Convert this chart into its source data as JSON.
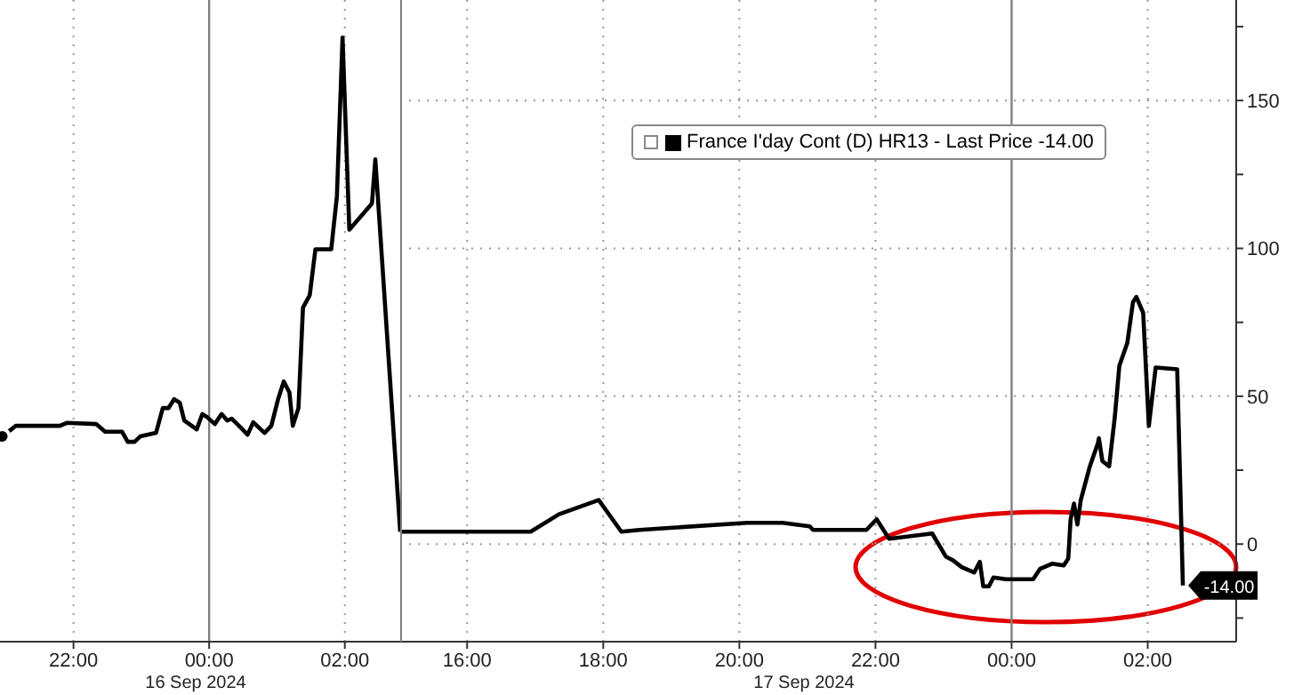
{
  "chart_data": [
    {
      "type": "line",
      "x": [
        "2024-09-15T20:57",
        "2024-09-15T21:09",
        "2024-09-15T21:48",
        "2024-09-15T21:54",
        "2024-09-15T22:20",
        "2024-09-15T22:28",
        "2024-09-15T22:43",
        "2024-09-15T22:48",
        "2024-09-15T22:54",
        "2024-09-15T22:59",
        "2024-09-15T23:13",
        "2024-09-15T23:19",
        "2024-09-15T23:24",
        "2024-09-15T23:29",
        "2024-09-15T23:34",
        "2024-09-15T23:38",
        "2024-09-15T23:49",
        "2024-09-15T23:54",
        "2024-09-15T23:58",
        "2024-09-16T00:05",
        "2024-09-16T00:11",
        "2024-09-16T00:16",
        "2024-09-16T00:20",
        "2024-09-16T00:28",
        "2024-09-16T00:34",
        "2024-09-16T00:39",
        "2024-09-16T00:49",
        "2024-09-16T00:55",
        "2024-09-16T01:01",
        "2024-09-16T01:06",
        "2024-09-16T01:11",
        "2024-09-16T01:14",
        "2024-09-16T01:19",
        "2024-09-16T01:23",
        "2024-09-16T01:29",
        "2024-09-16T01:34",
        "2024-09-16T01:48",
        "2024-09-16T01:53",
        "2024-09-16T01:58",
        "2024-09-16T02:04",
        "2024-09-16T02:24",
        "2024-09-16T02:27",
        "2024-09-16T02:49"
      ],
      "series": [
        {
          "color": "#000000",
          "values": [
            36.4,
            40,
            40,
            41,
            40.6,
            38,
            38,
            34.6,
            34.6,
            36.4,
            37.6,
            46,
            46,
            49,
            47.8,
            41.8,
            38.8,
            44,
            43,
            40.6,
            44,
            41.8,
            42.4,
            39.4,
            37,
            41.2,
            37.6,
            40,
            49,
            55,
            51.3,
            40,
            46,
            80,
            84.2,
            99.7,
            99.7,
            117.6,
            171.3,
            106.3,
            115.2,
            130.1,
            4.2
          ]
        }
      ],
      "xlim": [
        "2024-09-15T20:55",
        "2024-09-16T02:49"
      ],
      "xticks": [
        {
          "value": "2024-09-15T22:00",
          "label": "22:00"
        },
        {
          "value": "2024-09-16T00:00",
          "label": "00:00"
        },
        {
          "value": "2024-09-16T02:00",
          "label": "02:00"
        }
      ],
      "ylim": [
        -33,
        184
      ],
      "yticks": [
        0,
        50,
        100,
        150
      ],
      "tick_labels": "x",
      "grid": true,
      "marker": "none",
      "line_style": "solid",
      "ref_lines": [
        {
          "axis": "x",
          "value": "2024-09-16T00:00",
          "color": "#808080",
          "line_style": "solid"
        }
      ],
      "annotations": [
        "16 Sep 2024"
      ]
    },
    {
      "type": "line",
      "x": [
        "2024-09-17T15:01",
        "2024-09-17T16:56",
        "2024-09-17T17:21",
        "2024-09-17T17:56",
        "2024-09-17T18:16",
        "2024-09-17T18:32",
        "2024-09-17T20:07",
        "2024-09-17T20:38",
        "2024-09-17T21:02",
        "2024-09-17T21:05",
        "2024-09-17T21:52",
        "2024-09-17T22:01",
        "2024-09-17T22:09",
        "2024-09-17T22:12",
        "2024-09-17T22:50",
        "2024-09-17T23:02",
        "2024-09-17T23:08",
        "2024-09-17T23:16",
        "2024-09-17T23:27",
        "2024-09-17T23:32",
        "2024-09-17T23:35",
        "2024-09-17T23:40",
        "2024-09-17T23:44",
        "2024-09-17T23:55",
        "2024-09-18T00:19",
        "2024-09-18T00:25",
        "2024-09-18T00:36",
        "2024-09-18T00:46",
        "2024-09-18T00:50",
        "2024-09-18T00:52",
        "2024-09-18T00:55",
        "2024-09-18T00:58",
        "2024-09-18T01:01",
        "2024-09-18T01:09",
        "2024-09-18T01:16",
        "2024-09-18T01:17",
        "2024-09-18T01:20",
        "2024-09-18T01:26",
        "2024-09-18T01:31",
        "2024-09-18T01:35",
        "2024-09-18T01:42",
        "2024-09-18T01:47",
        "2024-09-18T01:50",
        "2024-09-18T01:56",
        "2024-09-18T02:01",
        "2024-09-18T02:07",
        "2024-09-18T02:26",
        "2024-09-18T02:31"
      ],
      "series": [
        {
          "name": "France I'day Cont (D) HR13 - Last Price -14.00",
          "color": "#000000",
          "values": [
            4.2,
            4.2,
            10.1,
            14.9,
            4.2,
            4.8,
            7.2,
            7.2,
            6,
            4.8,
            4.8,
            8.4,
            3.6,
            1.8,
            3.6,
            -4.2,
            -5.4,
            -7.8,
            -9.6,
            -6,
            -14.3,
            -14.3,
            -11.3,
            -11.9,
            -11.9,
            -8.4,
            -6.6,
            -7.2,
            -4.8,
            8.4,
            13.7,
            6.6,
            14.9,
            26.3,
            34,
            35.8,
            28.1,
            26.3,
            43,
            60.3,
            68,
            81.8,
            83.6,
            78.2,
            40,
            59.7,
            59.1,
            -14
          ]
        }
      ],
      "xlim": [
        "2024-09-17T15:01",
        "2024-09-18T03:18"
      ],
      "xticks": [
        {
          "value": "2024-09-17T16:00",
          "label": "16:00"
        },
        {
          "value": "2024-09-17T18:00",
          "label": "18:00"
        },
        {
          "value": "2024-09-17T20:00",
          "label": "20:00"
        },
        {
          "value": "2024-09-17T22:00",
          "label": "22:00"
        },
        {
          "value": "2024-09-18T00:00",
          "label": "00:00"
        },
        {
          "value": "2024-09-18T02:00",
          "label": "02:00"
        }
      ],
      "ylim": [
        -33,
        184
      ],
      "yticks": [
        {
          "value": -25,
          "label": null
        },
        0,
        {
          "value": 25,
          "label": null
        },
        50,
        {
          "value": 75,
          "label": null
        },
        100,
        {
          "value": 125,
          "label": null
        },
        150,
        {
          "value": 175,
          "label": null
        }
      ],
      "grid": true,
      "legend": "top right",
      "marker": "none",
      "line_style": "solid",
      "ref_lines": [
        {
          "axis": "x",
          "value": "2024-09-18T00:00",
          "color": "#808080",
          "line_style": "solid"
        }
      ],
      "annotations": [
        "17 Sep 2024",
        {
          "text": "-14.00",
          "x": "2024-09-18T02:31",
          "y": -14
        }
      ]
    }
  ]
}
